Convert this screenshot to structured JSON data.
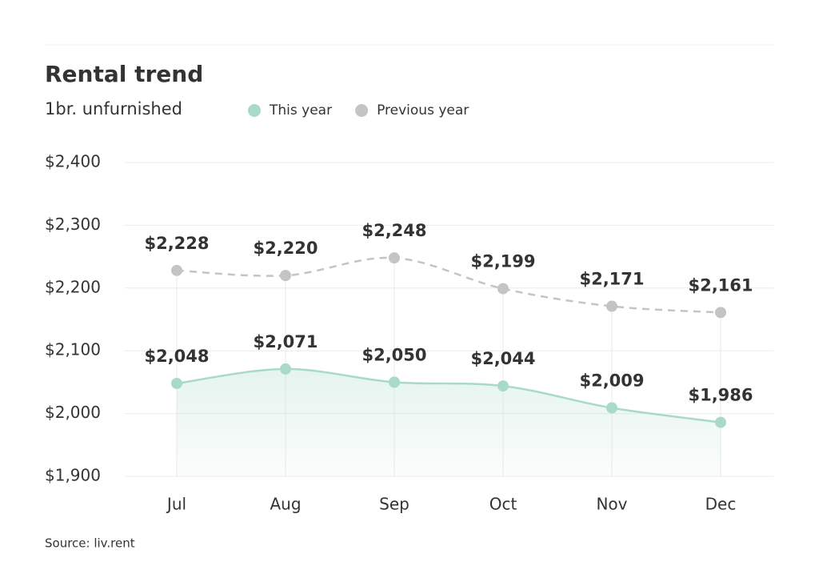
{
  "chart_data": {
    "type": "line",
    "title": "Rental trend",
    "subtitle": "1br. unfurnished",
    "source": "Source: liv.rent",
    "categories": [
      "Jul",
      "Aug",
      "Sep",
      "Oct",
      "Nov",
      "Dec"
    ],
    "series": [
      {
        "name": "This year",
        "color": "#a9d9cb",
        "values": [
          2048,
          2071,
          2050,
          2044,
          2009,
          1986
        ],
        "value_labels": [
          "$2,048",
          "$2,071",
          "$2,050",
          "$2,044",
          "$2,009",
          "$1,986"
        ]
      },
      {
        "name": "Previous year",
        "color": "#c4c4c4",
        "values": [
          2228,
          2220,
          2248,
          2199,
          2171,
          2161
        ],
        "value_labels": [
          "$2,228",
          "$2,220",
          "$2,248",
          "$2,199",
          "$2,171",
          "$2,161"
        ]
      }
    ],
    "ylim": [
      1900,
      2400
    ],
    "yticks": [
      {
        "value": 1900,
        "label": "$1,900"
      },
      {
        "value": 2000,
        "label": "$2,000"
      },
      {
        "value": 2100,
        "label": "$2,100"
      },
      {
        "value": 2200,
        "label": "$2,200"
      },
      {
        "value": 2300,
        "label": "$2,300"
      },
      {
        "value": 2400,
        "label": "$2,400"
      }
    ],
    "grid": true
  }
}
